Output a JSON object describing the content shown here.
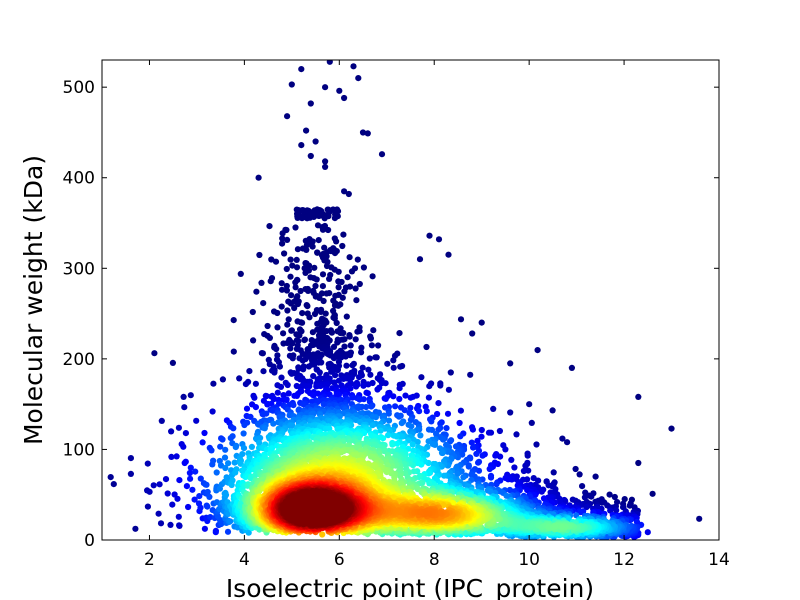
{
  "chart_data": {
    "type": "scatter",
    "title": "",
    "xlabel": "Isoelectric point (IPC_protein)",
    "ylabel": "Molecular weight (kDa)",
    "xlim": [
      1,
      14
    ],
    "ylim": [
      0,
      530
    ],
    "xticks": [
      2,
      4,
      6,
      8,
      10,
      12,
      14
    ],
    "yticks": [
      0,
      100,
      200,
      300,
      400,
      500
    ],
    "grid": false,
    "legend": "none",
    "colormap": "jet",
    "color_meaning": "point density (blue = low, red = high)",
    "density_peak": {
      "x": 5.4,
      "y": 32
    },
    "secondary_peak": {
      "x": 8.2,
      "y": 28
    },
    "outliers": [
      {
        "x": 5.2,
        "y": 520
      },
      {
        "x": 5.8,
        "y": 528
      },
      {
        "x": 6.3,
        "y": 523
      },
      {
        "x": 6.4,
        "y": 510
      },
      {
        "x": 5.0,
        "y": 503
      },
      {
        "x": 5.7,
        "y": 500
      },
      {
        "x": 6.0,
        "y": 496
      },
      {
        "x": 6.1,
        "y": 488
      },
      {
        "x": 5.4,
        "y": 482
      },
      {
        "x": 4.9,
        "y": 468
      },
      {
        "x": 5.3,
        "y": 452
      },
      {
        "x": 6.5,
        "y": 450
      },
      {
        "x": 6.6,
        "y": 449
      },
      {
        "x": 5.5,
        "y": 440
      },
      {
        "x": 5.2,
        "y": 436
      },
      {
        "x": 6.9,
        "y": 426
      },
      {
        "x": 5.4,
        "y": 424
      },
      {
        "x": 5.7,
        "y": 418
      },
      {
        "x": 5.7,
        "y": 412
      },
      {
        "x": 4.3,
        "y": 400
      },
      {
        "x": 6.1,
        "y": 385
      },
      {
        "x": 6.2,
        "y": 382
      },
      {
        "x": 7.9,
        "y": 336
      },
      {
        "x": 8.1,
        "y": 332
      },
      {
        "x": 8.3,
        "y": 315
      },
      {
        "x": 7.7,
        "y": 310
      },
      {
        "x": 8.8,
        "y": 228
      },
      {
        "x": 9.0,
        "y": 240
      },
      {
        "x": 9.6,
        "y": 195
      },
      {
        "x": 10.9,
        "y": 190
      },
      {
        "x": 12.3,
        "y": 158
      },
      {
        "x": 10.0,
        "y": 150
      },
      {
        "x": 13.0,
        "y": 123
      },
      {
        "x": 10.7,
        "y": 112
      },
      {
        "x": 10.8,
        "y": 108
      },
      {
        "x": 12.3,
        "y": 85
      },
      {
        "x": 12.6,
        "y": 51
      },
      {
        "x": 4.0,
        "y": 127
      },
      {
        "x": 3.6,
        "y": 52
      },
      {
        "x": 3.4,
        "y": 10
      },
      {
        "x": 3.9,
        "y": 60
      },
      {
        "x": 11.4,
        "y": 70
      }
    ]
  }
}
